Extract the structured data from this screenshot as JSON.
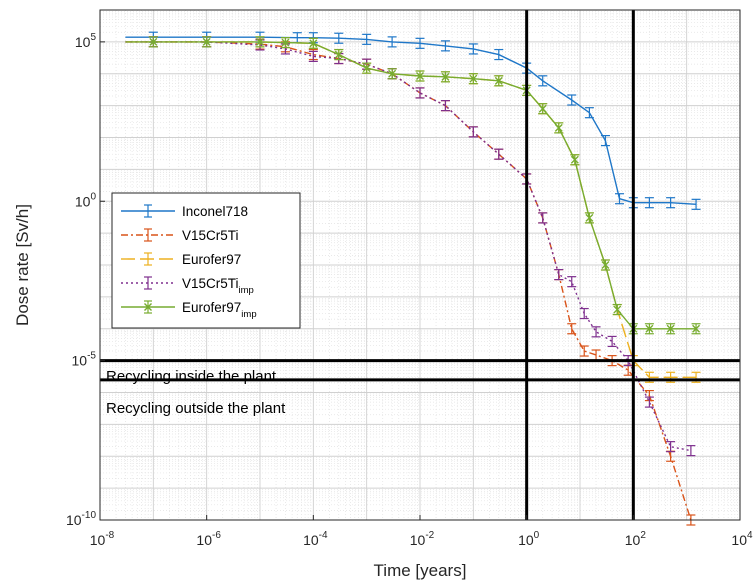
{
  "chart_data": {
    "type": "line",
    "xscale": "log",
    "yscale": "log",
    "xlim": [
      1e-08,
      10000
    ],
    "ylim": [
      1e-10,
      1000000.0
    ],
    "xlabel": "Time [years]",
    "ylabel": "Dose rate [Sv/h]",
    "x_ticks": [
      {
        "base": "10",
        "exp": "-8",
        "value": 1e-08
      },
      {
        "base": "10",
        "exp": "-6",
        "value": 1e-06
      },
      {
        "base": "10",
        "exp": "-4",
        "value": 0.0001
      },
      {
        "base": "10",
        "exp": "-2",
        "value": 0.01
      },
      {
        "base": "10",
        "exp": "0",
        "value": 1
      },
      {
        "base": "10",
        "exp": "2",
        "value": 100
      },
      {
        "base": "10",
        "exp": "4",
        "value": 10000
      }
    ],
    "y_ticks": [
      {
        "base": "10",
        "exp": "5",
        "value": 100000.0
      },
      {
        "base": "10",
        "exp": "0",
        "value": 1
      },
      {
        "base": "10",
        "exp": "-5",
        "value": 1e-05
      },
      {
        "base": "10",
        "exp": "-10",
        "value": 1e-10
      }
    ],
    "grid": true,
    "minor_grid": true,
    "legend_position": "left-middle",
    "thresholds": {
      "horizontal": [
        {
          "label": "Recycling inside the plant",
          "value": 1e-05
        },
        {
          "label": "Recycling outside the plant",
          "value": 2.5e-06
        }
      ],
      "vertical": [
        1,
        100
      ]
    },
    "series": [
      {
        "name": "Inconel718",
        "name_sub": "",
        "color": "#1f77c8",
        "dash": "",
        "marker": "none",
        "x": [
          3e-08,
          1e-07,
          1e-06,
          1e-05,
          5e-05,
          0.0001,
          0.0003,
          0.001,
          0.003,
          0.01,
          0.03,
          0.1,
          0.3,
          1,
          2,
          7,
          15,
          30,
          55,
          100,
          200,
          500,
          1500
        ],
        "y": [
          140000,
          140000,
          140000,
          140000,
          135000,
          135000,
          130000,
          120000,
          100000,
          90000,
          75000,
          60000,
          40000,
          15000,
          6000,
          1500,
          600,
          80,
          1.2,
          0.9,
          0.9,
          0.9,
          0.8
        ]
      },
      {
        "name": "V15Cr5Ti",
        "name_sub": "",
        "color": "#d95319",
        "dash": "7,3,2,3",
        "marker": "none",
        "x": [
          3e-08,
          1e-07,
          1e-06,
          1e-05,
          3e-05,
          0.0001,
          0.0003,
          0.001,
          0.003,
          0.01,
          0.03,
          0.1,
          0.3,
          1,
          2,
          4,
          7,
          12,
          20,
          40,
          80,
          200,
          500,
          1200
        ],
        "y": [
          100000,
          100000,
          100000,
          85000,
          70000,
          40000,
          30000,
          20000,
          10000,
          2500,
          1000,
          150,
          30,
          5,
          0.3,
          0.005,
          0.0001,
          2e-05,
          1.5e-05,
          1e-05,
          5e-06,
          8e-07,
          1e-08,
          1e-10
        ]
      },
      {
        "name": "Eurofer97",
        "name_sub": "",
        "color": "#edb120",
        "dash": "14,5",
        "marker": "none",
        "x": [
          3e-08,
          1e-07,
          1e-06,
          1e-05,
          3e-05,
          0.0001,
          0.0003,
          0.001,
          0.003,
          0.01,
          0.03,
          0.1,
          0.3,
          1,
          2,
          4,
          8,
          15,
          30,
          50,
          100,
          200,
          500,
          1500
        ],
        "y": [
          100000,
          100000,
          100000,
          100000,
          95000,
          90000,
          40000,
          15000,
          10000,
          8500,
          8000,
          7000,
          6000,
          3000,
          800,
          200,
          20,
          0.3,
          0.01,
          0.0004,
          1e-05,
          3e-06,
          3e-06,
          3e-06
        ]
      },
      {
        "name": "V15Cr5Ti",
        "name_sub": "imp",
        "color": "#7e2f8e",
        "dash": "2,3",
        "marker": "none",
        "x": [
          3e-08,
          1e-07,
          1e-06,
          1e-05,
          3e-05,
          0.0001,
          0.0003,
          0.001,
          0.003,
          0.01,
          0.03,
          0.1,
          0.3,
          1,
          2,
          4,
          7,
          12,
          20,
          40,
          80,
          200,
          500,
          1200
        ],
        "y": [
          100000,
          100000,
          100000,
          80000,
          60000,
          35000,
          30000,
          20000,
          10000,
          2500,
          1000,
          150,
          30,
          5,
          0.3,
          0.005,
          0.003,
          0.0003,
          8e-05,
          4e-05,
          1e-05,
          5e-07,
          2e-08,
          1.5e-08
        ]
      },
      {
        "name": "Eurofer97",
        "name_sub": "imp",
        "color": "#77ac30",
        "dash": "",
        "marker": "x",
        "x": [
          3e-08,
          1e-07,
          1e-06,
          1e-05,
          3e-05,
          0.0001,
          0.0003,
          0.001,
          0.003,
          0.01,
          0.03,
          0.1,
          0.3,
          1,
          2,
          4,
          8,
          15,
          30,
          50,
          100,
          200,
          500,
          1500
        ],
        "y": [
          100000,
          100000,
          100000,
          100000,
          95000,
          90000,
          40000,
          15000,
          10000,
          8500,
          8000,
          7000,
          6000,
          3000,
          800,
          200,
          20,
          0.3,
          0.01,
          0.0004,
          0.0001,
          0.0001,
          0.0001,
          0.0001
        ]
      }
    ]
  }
}
